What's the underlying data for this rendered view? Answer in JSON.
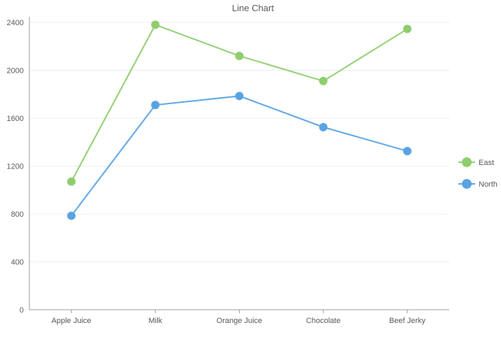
{
  "chart_data": {
    "type": "line",
    "title": "Line Chart",
    "categories": [
      "Apple Juice",
      "Milk",
      "Orange Juice",
      "Chocolate",
      "Beef Jerky"
    ],
    "series": [
      {
        "name": "East",
        "color": "#8fce6f",
        "values": [
          1070,
          2380,
          2120,
          1910,
          2345
        ]
      },
      {
        "name": "North",
        "color": "#5aa3e3",
        "values": [
          785,
          1710,
          1785,
          1525,
          1325
        ]
      }
    ],
    "yticks": [
      0,
      400,
      800,
      1200,
      1600,
      2000,
      2400
    ],
    "ylim": [
      0,
      2400
    ],
    "grid": true,
    "legend_position": "right"
  }
}
